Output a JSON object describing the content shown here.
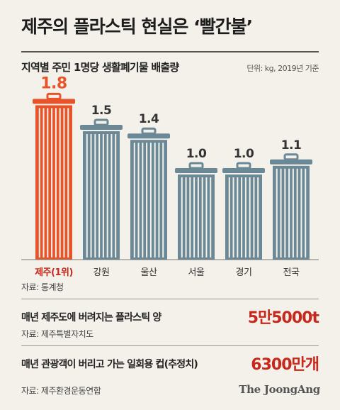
{
  "header": {
    "title": "제주의 플라스틱 현실은 ‘빨간불’"
  },
  "chart": {
    "subtitle": "지역별 주민 1명당 생활폐기물 배출량",
    "unit": "단위: kg, 2019년 기준",
    "source": "자료: 통계청"
  },
  "chart_data": {
    "type": "bar",
    "title": "지역별 주민 1명당 생활폐기물 배출량",
    "unit": "kg",
    "categories": [
      "제주(1위)",
      "강원",
      "울산",
      "서울",
      "경기",
      "전국"
    ],
    "values": [
      1.8,
      1.5,
      1.4,
      1.0,
      1.0,
      1.1
    ],
    "value_labels": [
      "1.8",
      "1.5",
      "1.4",
      "1.0",
      "1.0",
      "1.1"
    ],
    "highlight_index": 0,
    "grid": false,
    "colors": {
      "highlight": "#e8542a",
      "normal": "#6b8896",
      "highlight_label": "#c8281c"
    }
  },
  "facts": [
    {
      "label": "매년 제주도에 버려지는 플라스틱 양",
      "value": "5만5000t",
      "source": "자료: 제주특별자치도"
    },
    {
      "label": "매년 관광객이 버리고 가는 일회용 컵(추정치)",
      "value": "6300만개",
      "source": "자료: 제주환경운동연합"
    }
  ],
  "logo": "The JoongAng"
}
